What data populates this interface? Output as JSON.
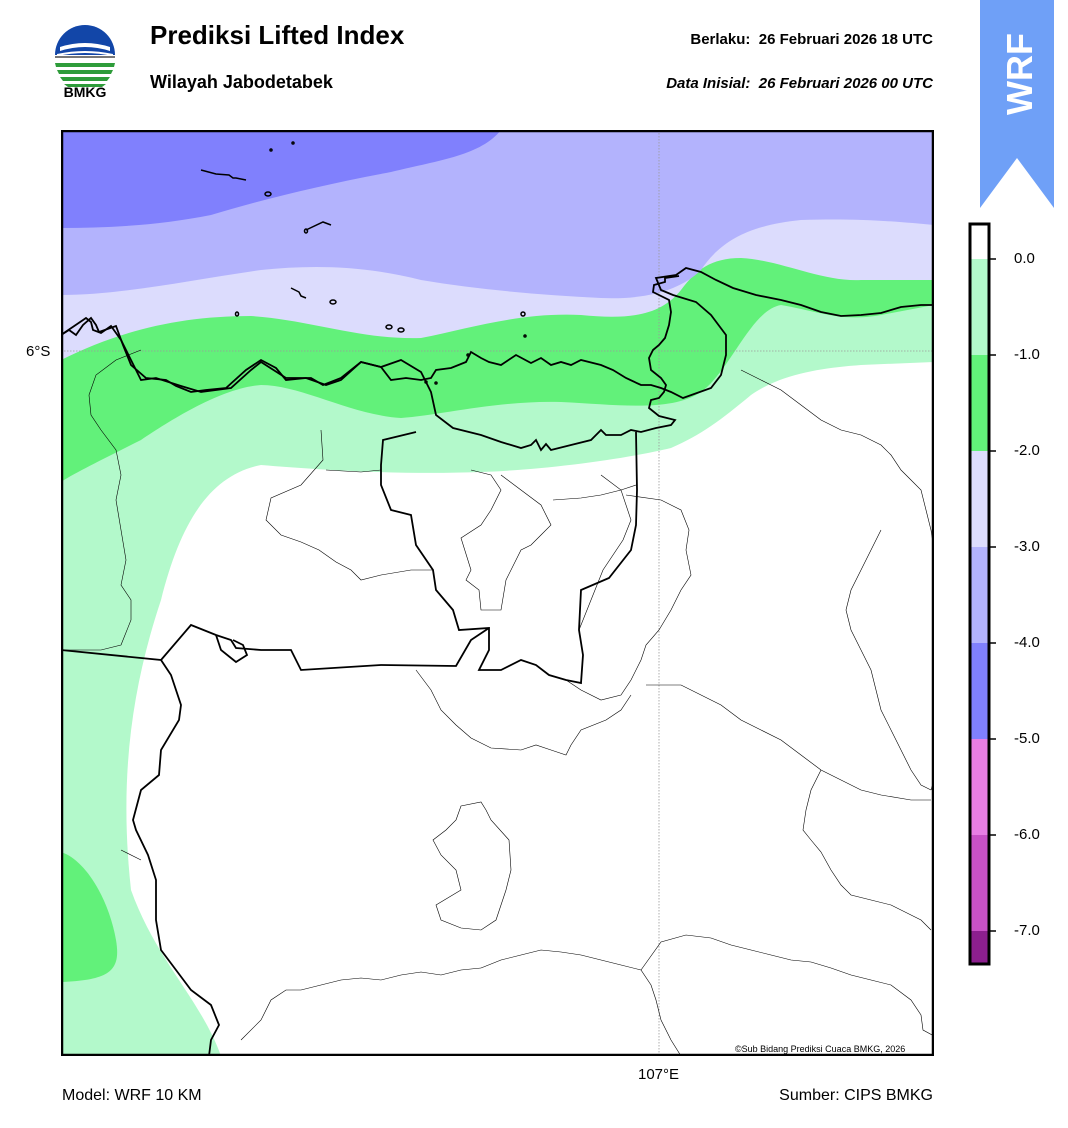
{
  "header": {
    "title": "Prediksi Lifted Index",
    "subtitle": "Wilayah Jabodetabek",
    "valid_label": "Berlaku:",
    "valid_time": "26 Februari 2026 18 UTC",
    "init_label": "Data Inisial:",
    "init_time": "26 Februari 2026 00 UTC"
  },
  "logo": {
    "text": "BMKG",
    "icon": "bmkg-logo"
  },
  "banner": {
    "text": "WRF",
    "color": "#6fa0f7"
  },
  "map": {
    "lat_label": "6°S",
    "lon_label": "107°E",
    "copyright": "©Sub Bidang Prediksi Cuaca BMKG, 2026"
  },
  "colorbar": {
    "labels": [
      "0.0",
      "-1.0",
      "-2.0",
      "-3.0",
      "-4.0",
      "-5.0",
      "-6.0",
      "-7.0"
    ],
    "colors": [
      "#b3f9cb",
      "#62f17a",
      "#dcdcfd",
      "#b3b3fd",
      "#8080fd",
      "#e87ee4",
      "#c851c6",
      "#8c1f8e"
    ]
  },
  "footer": {
    "model": "Model: WRF 10 KM",
    "source": "Sumber: CIPS BMKG"
  }
}
